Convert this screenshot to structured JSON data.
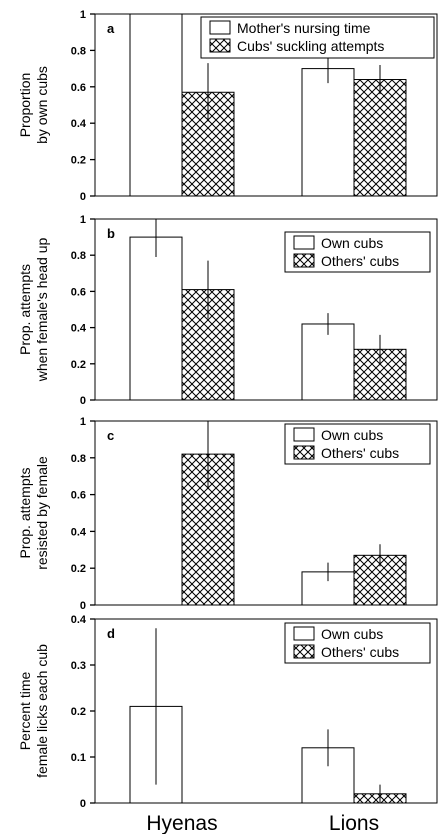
{
  "chart_data": [
    {
      "type": "bar",
      "panel": "a",
      "categories": [
        "Hyenas",
        "Lions"
      ],
      "ylabel": [
        "Proportion",
        "by own cubs"
      ],
      "ylim": [
        0,
        1
      ],
      "yticks": [
        0,
        0.2,
        0.4,
        0.6,
        0.8,
        1
      ],
      "ytick_labels": [
        "0",
        "0.2",
        "0.4",
        "0.6",
        "0.8",
        "1"
      ],
      "legend_position": "top-right",
      "series": [
        {
          "name": "Mother's nursing time",
          "pattern": "open",
          "values": [
            1.0,
            0.7
          ],
          "err_low": [
            null,
            0.62
          ],
          "err_high": [
            null,
            0.78
          ]
        },
        {
          "name": "Cubs' suckling attempts",
          "pattern": "crosshatch",
          "values": [
            0.57,
            0.64
          ],
          "err_low": [
            0.41,
            0.56
          ],
          "err_high": [
            0.73,
            0.72
          ]
        }
      ]
    },
    {
      "type": "bar",
      "panel": "b",
      "categories": [
        "Hyenas",
        "Lions"
      ],
      "ylabel": [
        "Prop. attempts",
        "when female's head up"
      ],
      "ylim": [
        0,
        1
      ],
      "yticks": [
        0,
        0.2,
        0.4,
        0.6,
        0.8,
        1
      ],
      "ytick_labels": [
        "0",
        "0.2",
        "0.4",
        "0.6",
        "0.8",
        "1"
      ],
      "legend_position": "top-right",
      "series": [
        {
          "name": "Own cubs",
          "pattern": "open",
          "values": [
            0.9,
            0.42
          ],
          "err_low": [
            0.79,
            0.36
          ],
          "err_high": [
            1.0,
            0.48
          ]
        },
        {
          "name": "Others' cubs",
          "pattern": "crosshatch",
          "values": [
            0.61,
            0.28
          ],
          "err_low": [
            0.45,
            0.2
          ],
          "err_high": [
            0.77,
            0.36
          ]
        }
      ]
    },
    {
      "type": "bar",
      "panel": "c",
      "categories": [
        "Hyenas",
        "Lions"
      ],
      "ylabel": [
        "Prop. attempts",
        "resisted by female"
      ],
      "ylim": [
        0,
        1
      ],
      "yticks": [
        0,
        0.2,
        0.4,
        0.6,
        0.8,
        1
      ],
      "ytick_labels": [
        "0",
        "0.2",
        "0.4",
        "0.6",
        "0.8",
        "1"
      ],
      "legend_position": "top-right",
      "series": [
        {
          "name": "Own cubs",
          "pattern": "open",
          "values": [
            0.0,
            0.18
          ],
          "err_low": [
            null,
            0.13
          ],
          "err_high": [
            null,
            0.23
          ]
        },
        {
          "name": "Others' cubs",
          "pattern": "crosshatch",
          "values": [
            0.82,
            0.27
          ],
          "err_low": [
            0.63,
            0.21
          ],
          "err_high": [
            1.0,
            0.33
          ]
        }
      ]
    },
    {
      "type": "bar",
      "panel": "d",
      "categories": [
        "Hyenas",
        "Lions"
      ],
      "ylabel": [
        "Percent time",
        "female licks each cub"
      ],
      "ylim": [
        0,
        0.4
      ],
      "yticks": [
        0,
        0.1,
        0.2,
        0.3,
        0.4
      ],
      "ytick_labels": [
        "0",
        "0.1",
        "0.2",
        "0.3",
        "0.4"
      ],
      "legend_position": "top-right",
      "series": [
        {
          "name": "Own cubs",
          "pattern": "open",
          "values": [
            0.21,
            0.12
          ],
          "err_low": [
            0.04,
            0.08
          ],
          "err_high": [
            0.38,
            0.16
          ]
        },
        {
          "name": "Others' cubs",
          "pattern": "crosshatch",
          "values": [
            0.0,
            0.02
          ],
          "err_low": [
            null,
            0.0
          ],
          "err_high": [
            null,
            0.04
          ]
        }
      ]
    }
  ]
}
